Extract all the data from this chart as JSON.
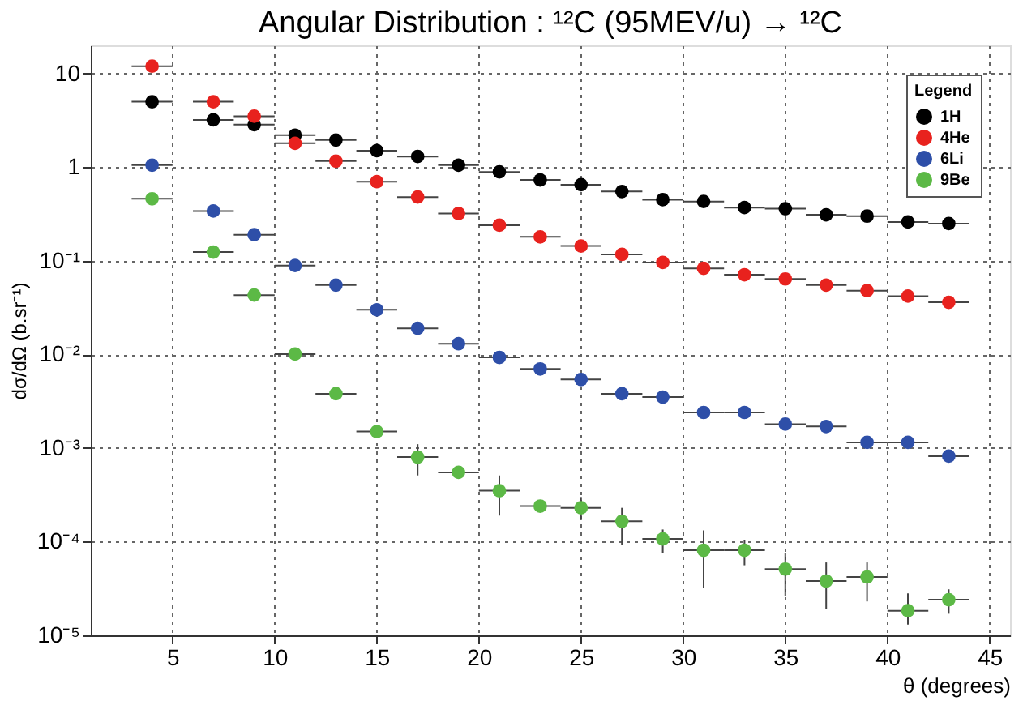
{
  "chart_data": {
    "type": "scatter",
    "title": "Angular Distribution : ¹²C (95MEV/u) → ¹²C",
    "xlabel": "θ (degrees)",
    "ylabel": "dσ/dΩ (b.sr⁻¹)",
    "legend_title": "Legend",
    "legend": "top right",
    "grid": true,
    "marker": "circle",
    "log": "y",
    "xlim": [
      1,
      46
    ],
    "xticks": [
      5,
      10,
      15,
      20,
      25,
      30,
      35,
      40,
      45
    ],
    "ylim": [
      1e-05,
      20
    ],
    "yticks": [
      {
        "value": 1e-05,
        "label": "10⁻⁵"
      },
      {
        "value": 0.0001,
        "label": "10⁻⁴"
      },
      {
        "value": 0.001,
        "label": "10⁻³"
      },
      {
        "value": 0.01,
        "label": "10⁻²"
      },
      {
        "value": 0.1,
        "label": "10⁻¹"
      },
      1,
      10
    ],
    "series": [
      {
        "name": "1H",
        "color": "#000000",
        "x": [
          4,
          7,
          9,
          11,
          13,
          15,
          17,
          19,
          21,
          23,
          25,
          27,
          29,
          31,
          33,
          35,
          37,
          39,
          41,
          43
        ],
        "values": [
          5.0,
          3.2,
          2.85,
          2.2,
          1.95,
          1.5,
          1.3,
          1.05,
          0.89,
          0.73,
          0.65,
          0.55,
          0.45,
          0.43,
          0.37,
          0.36,
          0.31,
          0.3,
          0.26,
          0.25
        ],
        "xerrors": [
          1,
          1,
          1,
          1,
          1,
          1,
          1,
          1,
          1,
          1,
          1,
          1,
          1,
          1,
          1,
          1,
          1,
          1,
          1,
          1
        ]
      },
      {
        "name": "4He",
        "color": "#e8221e",
        "x": [
          4,
          7,
          9,
          11,
          13,
          15,
          17,
          19,
          21,
          23,
          25,
          27,
          29,
          31,
          33,
          35,
          37,
          39,
          41,
          43
        ],
        "values": [
          12,
          5.0,
          3.5,
          1.8,
          1.16,
          0.7,
          0.48,
          0.32,
          0.24,
          0.18,
          0.144,
          0.117,
          0.096,
          0.083,
          0.071,
          0.064,
          0.055,
          0.048,
          0.042,
          0.036
        ],
        "xerrors": [
          1,
          1,
          1,
          1,
          1,
          1,
          1,
          1,
          1,
          1,
          1,
          1,
          1,
          1,
          1,
          1,
          1,
          1,
          1,
          1
        ]
      },
      {
        "name": "6Li",
        "color": "#2e4fa8",
        "x": [
          4,
          7,
          9,
          11,
          13,
          15,
          17,
          19,
          21,
          23,
          25,
          27,
          29,
          31,
          33,
          35,
          37,
          39,
          41,
          43
        ],
        "values": [
          1.05,
          0.34,
          0.19,
          0.089,
          0.055,
          0.03,
          0.019,
          0.013,
          0.0093,
          0.007,
          0.0054,
          0.0038,
          0.0035,
          0.0024,
          0.0024,
          0.0018,
          0.0017,
          0.00115,
          0.00115,
          0.00082
        ],
        "xerrors": [
          1,
          1,
          1,
          1,
          1,
          1,
          1,
          1,
          1,
          1,
          1,
          1,
          1,
          1,
          1,
          1,
          1,
          1,
          1,
          1
        ]
      },
      {
        "name": "9Be",
        "color": "#5cb946",
        "x": [
          4,
          7,
          9,
          11,
          13,
          15,
          17,
          19,
          21,
          23,
          25,
          27,
          29,
          31,
          33,
          35,
          37,
          39,
          41,
          43
        ],
        "values": [
          0.46,
          0.124,
          0.043,
          0.0101,
          0.0038,
          0.0015,
          0.0008,
          0.00055,
          0.00035,
          0.00024,
          0.00023,
          0.000165,
          0.000107,
          8.1e-05,
          8.1e-05,
          5.1e-05,
          3.8e-05,
          4.2e-05,
          1.83e-05,
          2.4e-05
        ],
        "xerrors": [
          1,
          1,
          1,
          1,
          1,
          1,
          1,
          1,
          1,
          1,
          1,
          1,
          1,
          1,
          1,
          1,
          1,
          1,
          1,
          1
        ],
        "errors": [
          null,
          null,
          null,
          null,
          null,
          null,
          [
            0.00051,
            0.0011
          ],
          null,
          [
            0.00019,
            0.00051
          ],
          null,
          [
            0.00017,
            0.0003
          ],
          [
            9.3e-05,
            0.00023
          ],
          [
            7.6e-05,
            0.000135
          ],
          [
            3.2e-05,
            0.000132
          ],
          [
            5.6e-05,
            0.000105
          ],
          [
            2.6e-05,
            7.6e-05
          ],
          [
            1.9e-05,
            6e-05
          ],
          [
            2.3e-05,
            6e-05
          ],
          [
            1.3e-05,
            2.8e-05
          ],
          [
            1.7e-05,
            3.1e-05
          ]
        ]
      }
    ]
  }
}
